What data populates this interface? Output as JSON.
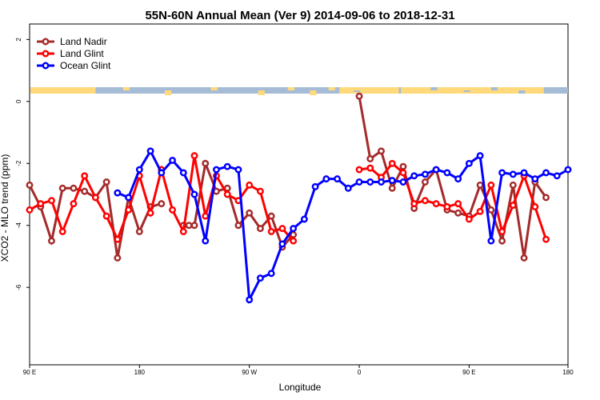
{
  "chart_data": {
    "type": "line",
    "title": "55N-60N Annual Mean (Ver 9)   2014-09-06 to 2018-12-31",
    "xlabel": "Longitude",
    "ylabel": "XCO2 - MLO trend (ppm)",
    "xlim": [
      0,
      49
    ],
    "ylim": [
      -8.5,
      2.5
    ],
    "x_ticks": [
      {
        "x": 0,
        "label": "90 E"
      },
      {
        "x": 10,
        "label": "180"
      },
      {
        "x": 20,
        "label": "90 W"
      },
      {
        "x": 30,
        "label": "0"
      },
      {
        "x": 40,
        "label": "90 E"
      },
      {
        "x": 49,
        "label": "180"
      }
    ],
    "y_ticks": [
      {
        "y": 2,
        "label": "2"
      },
      {
        "y": 0,
        "label": "0"
      },
      {
        "y": -2,
        "label": "-2"
      },
      {
        "y": -4,
        "label": "-4"
      },
      {
        "y": -6,
        "label": "-6"
      }
    ],
    "legend_position": "top-left",
    "series": [
      {
        "name": "Land Nadir",
        "color": "#a52a2a",
        "x": [
          0,
          1,
          2,
          3,
          4,
          5,
          6,
          7,
          8,
          9,
          10,
          11,
          12,
          13,
          14,
          14.5,
          15,
          16,
          17,
          18,
          19,
          20,
          21,
          22,
          23,
          24,
          25,
          30,
          31,
          32,
          33,
          34,
          35,
          36,
          37,
          38,
          39,
          40,
          41,
          42,
          43,
          44,
          45,
          46,
          47
        ],
        "values": [
          -2.7,
          -3.4,
          -4.5,
          -2.8,
          -2.8,
          -2.9,
          -3.1,
          -2.6,
          -5.05,
          -3.1,
          -4.2,
          -3.4,
          -3.3,
          null,
          -4.0,
          -4.0,
          -4.0,
          -2.0,
          -2.9,
          -2.8,
          -4.0,
          -3.6,
          -4.1,
          -3.7,
          -4.7,
          -4.3,
          null,
          0.17,
          -1.85,
          -1.6,
          -2.8,
          -2.1,
          -3.45,
          -2.6,
          -2.2,
          -3.5,
          -3.6,
          -3.7,
          -2.7,
          -3.5,
          -4.5,
          -2.7,
          -5.05,
          -2.6,
          -3.1
        ]
      },
      {
        "name": "Land Glint",
        "color": "#ff0000",
        "x": [
          0,
          1,
          2,
          3,
          4,
          5,
          6,
          7,
          8,
          9,
          10,
          11,
          12,
          13,
          14,
          15,
          16,
          17,
          18,
          19,
          20,
          21,
          22,
          23,
          24,
          25,
          30,
          31,
          32,
          33,
          34,
          35,
          36,
          37,
          38,
          39,
          40,
          41,
          42,
          43,
          44,
          45,
          46,
          47
        ],
        "values": [
          -3.5,
          -3.3,
          -3.2,
          -4.2,
          -3.3,
          -2.4,
          -3.1,
          -3.7,
          -4.45,
          -3.5,
          -2.4,
          -3.6,
          -2.2,
          -3.5,
          -4.2,
          -1.75,
          -3.7,
          -2.4,
          -3.0,
          -3.2,
          -2.7,
          -2.9,
          -4.2,
          -4.1,
          -4.5,
          null,
          -2.2,
          -2.15,
          -2.45,
          -2.0,
          -2.3,
          -3.3,
          -3.2,
          -3.3,
          -3.4,
          -3.3,
          -3.8,
          -3.55,
          -2.7,
          -4.2,
          -3.35,
          -2.4,
          -3.4,
          -4.45
        ]
      },
      {
        "name": "Ocean Glint",
        "color": "#0000ff",
        "x": [
          8,
          9,
          10,
          11,
          12,
          13,
          14,
          15,
          16,
          17,
          18,
          19,
          20,
          21,
          22,
          23,
          24,
          25,
          26,
          27,
          28,
          29,
          30,
          31,
          32,
          33,
          34,
          35,
          36,
          37,
          38,
          39,
          40,
          41,
          42,
          43,
          44,
          45,
          46,
          47,
          48,
          49
        ],
        "values": [
          -2.95,
          -3.1,
          -2.2,
          -1.6,
          -2.3,
          -1.9,
          -2.3,
          -3.0,
          -4.5,
          -2.2,
          -2.1,
          -2.2,
          -6.4,
          -5.7,
          -5.55,
          -4.6,
          -4.1,
          -3.8,
          -2.75,
          -2.5,
          -2.5,
          -2.8,
          -2.6,
          -2.6,
          -2.6,
          -2.55,
          -2.6,
          -2.4,
          -2.35,
          -2.2,
          -2.3,
          -2.5,
          -2.0,
          -1.75,
          -4.5,
          -2.3,
          -2.35,
          -2.3,
          -2.5,
          -2.3,
          -2.4,
          -2.2
        ]
      }
    ],
    "map_strip": {
      "land_color": "#ffd97a",
      "ocean_color": "#a6bcd6"
    }
  }
}
